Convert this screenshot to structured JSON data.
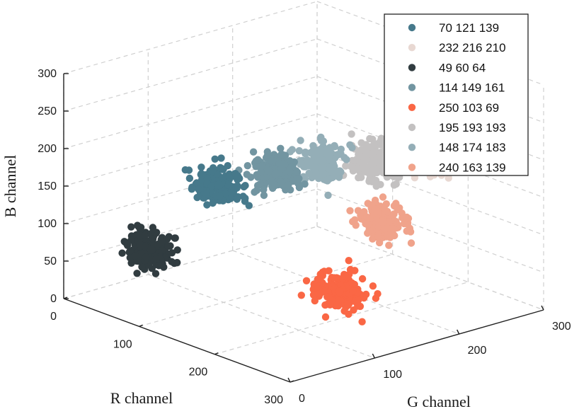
{
  "chart_data": {
    "type": "scatter",
    "projection": "3d",
    "xlabel": "R channel",
    "ylabel": "G channel",
    "zlabel": "B channel",
    "xlim": [
      0,
      300
    ],
    "ylim": [
      0,
      300
    ],
    "zlim": [
      0,
      300
    ],
    "x_ticks": [
      "0",
      "100",
      "200",
      "300"
    ],
    "y_ticks": [
      "0",
      "100",
      "200",
      "300"
    ],
    "z_ticks": [
      "0",
      "50",
      "100",
      "150",
      "200",
      "250",
      "300"
    ],
    "grid": true,
    "legend_position": "top-right",
    "series": [
      {
        "name": "70 121 139",
        "color": "#46798b",
        "center": [
          70,
          121,
          139
        ]
      },
      {
        "name": "232 216 210",
        "color": "#e8d8d2",
        "center": [
          232,
          216,
          210
        ]
      },
      {
        "name": "49 60 64",
        "color": "#313c40",
        "center": [
          49,
          60,
          64
        ]
      },
      {
        "name": "114 149 161",
        "color": "#7295a1",
        "center": [
          114,
          149,
          161
        ]
      },
      {
        "name": "250 103 69",
        "color": "#fa6745",
        "center": [
          250,
          103,
          69
        ]
      },
      {
        "name": "195 193 193",
        "color": "#c3c1c1",
        "center": [
          195,
          193,
          193
        ]
      },
      {
        "name": "148 174 183",
        "color": "#94aeb7",
        "center": [
          148,
          174,
          183
        ]
      },
      {
        "name": "240 163 139",
        "color": "#f0a38b",
        "center": [
          240,
          163,
          139
        ]
      }
    ]
  }
}
